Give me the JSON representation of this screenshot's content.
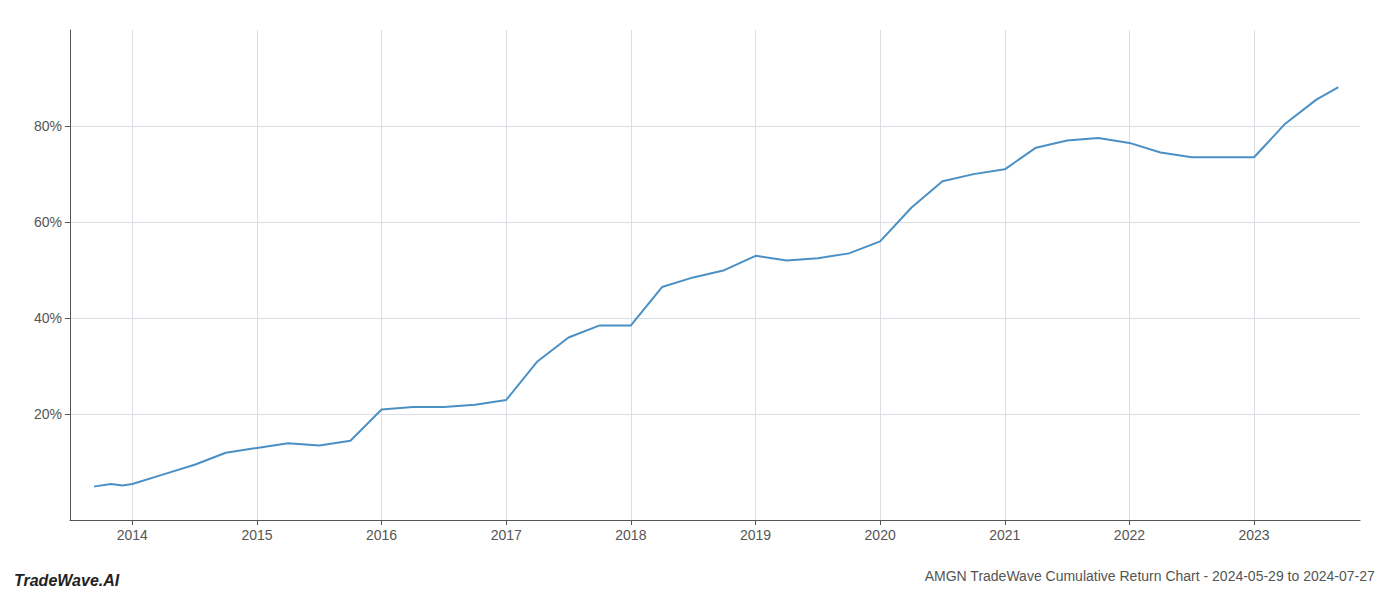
{
  "chart_data": {
    "type": "line",
    "title": "AMGN TradeWave Cumulative Return Chart - 2024-05-29 to 2024-07-27",
    "annotations": [
      "TradeWave.AI"
    ],
    "color": "#4a90c4",
    "grid": true,
    "x": [
      2013.7,
      2013.83,
      2013.92,
      2014.0,
      2014.25,
      2014.5,
      2014.75,
      2015.0,
      2015.25,
      2015.5,
      2015.75,
      2016.0,
      2016.25,
      2016.5,
      2016.75,
      2017.0,
      2017.25,
      2017.5,
      2017.75,
      2018.0,
      2018.25,
      2018.5,
      2018.75,
      2019.0,
      2019.25,
      2019.5,
      2019.75,
      2020.0,
      2020.25,
      2020.5,
      2020.75,
      2021.0,
      2021.25,
      2021.5,
      2021.75,
      2022.0,
      2022.25,
      2022.5,
      2022.75,
      2023.0,
      2023.25,
      2023.5,
      2023.67
    ],
    "values": [
      5.0,
      5.5,
      5.2,
      5.5,
      7.5,
      9.5,
      12.0,
      13.0,
      14.0,
      13.5,
      14.5,
      21.0,
      21.5,
      21.5,
      22.0,
      23.0,
      31.0,
      36.0,
      38.5,
      38.5,
      46.5,
      48.5,
      50.0,
      53.0,
      52.0,
      52.5,
      53.5,
      56.0,
      63.0,
      68.5,
      70.0,
      71.0,
      75.5,
      77.0,
      77.5,
      76.5,
      74.5,
      73.5,
      73.5,
      73.5,
      80.5,
      85.5,
      88.0
    ],
    "xlim": [
      2013.5,
      2023.85
    ],
    "xticks": [
      2014,
      2015,
      2016,
      2017,
      2018,
      2019,
      2020,
      2021,
      2022,
      2023
    ],
    "ylim": [
      -2,
      100
    ],
    "yticks": [
      {
        "value": 20,
        "label": "20%"
      },
      {
        "value": 40,
        "label": "40%"
      },
      {
        "value": 60,
        "label": "60%"
      },
      {
        "value": 80,
        "label": "80%"
      }
    ]
  }
}
